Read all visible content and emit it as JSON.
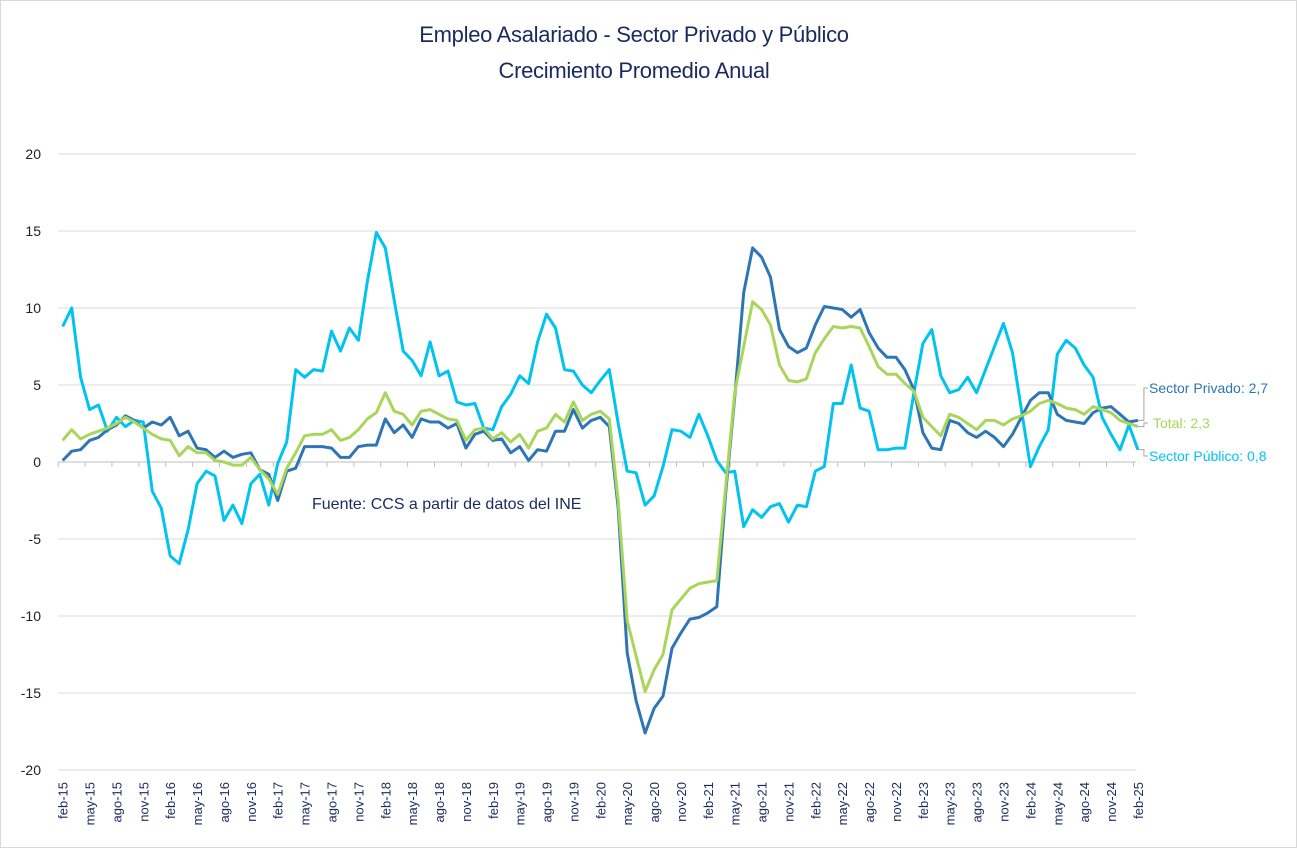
{
  "chart_data": {
    "type": "line",
    "title": "Empleo Asalariado - Sector Privado y Público",
    "subtitle": "Crecimiento Promedio Anual",
    "xlabel": "",
    "ylabel": "",
    "ylim": [
      -20,
      20
    ],
    "yticks": [
      20,
      15,
      10,
      5,
      0,
      -5,
      -10,
      -15,
      -20
    ],
    "grid": true,
    "start_month": "feb-15",
    "end_month": "feb-25",
    "xtick_labels": [
      "feb-15",
      "may-15",
      "ago-15",
      "nov-15",
      "feb-16",
      "may-16",
      "ago-16",
      "nov-16",
      "feb-17",
      "may-17",
      "ago-17",
      "nov-17",
      "feb-18",
      "may-18",
      "ago-18",
      "nov-18",
      "feb-19",
      "may-19",
      "ago-19",
      "nov-19",
      "feb-20",
      "may-20",
      "ago-20",
      "nov-20",
      "feb-21",
      "may-21",
      "ago-21",
      "nov-21",
      "feb-22",
      "may-22",
      "ago-22",
      "nov-22",
      "feb-23",
      "may-23",
      "ago-23",
      "nov-23",
      "feb-24",
      "may-24",
      "ago-24",
      "nov-24",
      "feb-25"
    ],
    "annotation": "Fuente: CCS a partir de datos del INE",
    "series": [
      {
        "name": "Sector Privado",
        "end_label": "Sector Privado: 2,7",
        "color": "#2e75b6",
        "values": [
          0.1,
          0.7,
          0.8,
          1.4,
          1.6,
          2.1,
          2.4,
          3.0,
          2.7,
          2.2,
          2.6,
          2.4,
          2.9,
          1.7,
          2.0,
          0.9,
          0.8,
          0.3,
          0.7,
          0.3,
          0.5,
          0.6,
          -0.5,
          -0.8,
          -2.5,
          -0.6,
          -0.4,
          1.0,
          1.0,
          1.0,
          0.9,
          0.3,
          0.3,
          1.0,
          1.1,
          1.1,
          2.8,
          1.9,
          2.4,
          1.6,
          2.8,
          2.6,
          2.6,
          2.2,
          2.5,
          0.9,
          1.8,
          2.0,
          1.4,
          1.5,
          0.6,
          1.0,
          0.1,
          0.8,
          0.7,
          2.0,
          2.0,
          3.4,
          2.2,
          2.7,
          2.9,
          2.3,
          -3.0,
          -12.4,
          -15.5,
          -17.6,
          -16.0,
          -15.2,
          -12.1,
          -11.1,
          -10.2,
          -10.1,
          -9.8,
          -9.4,
          -2.0,
          4.2,
          11.0,
          13.9,
          13.3,
          12.0,
          8.6,
          7.5,
          7.1,
          7.4,
          8.9,
          10.1,
          10.0,
          9.9,
          9.4,
          9.9,
          8.4,
          7.4,
          6.8,
          6.8,
          6.0,
          4.7,
          1.9,
          0.9,
          0.8,
          2.7,
          2.5,
          1.9,
          1.6,
          2.0,
          1.6,
          1.0,
          1.8,
          2.9,
          4.0,
          4.5,
          4.5,
          3.1,
          2.7,
          2.6,
          2.5,
          3.2,
          3.5,
          3.6,
          3.1,
          2.6,
          2.7
        ]
      },
      {
        "name": "Total",
        "end_label": "Total: 2,3",
        "color": "#a9d65a",
        "values": [
          1.4,
          2.1,
          1.5,
          1.8,
          2.0,
          2.2,
          2.5,
          2.9,
          2.6,
          2.2,
          1.8,
          1.5,
          1.4,
          0.4,
          1.0,
          0.6,
          0.6,
          0.1,
          0.0,
          -0.2,
          -0.2,
          0.3,
          -0.5,
          -1.1,
          -2.1,
          -0.4,
          0.6,
          1.7,
          1.8,
          1.8,
          2.1,
          1.4,
          1.6,
          2.1,
          2.8,
          3.2,
          4.5,
          3.3,
          3.1,
          2.4,
          3.3,
          3.4,
          3.1,
          2.8,
          2.7,
          1.4,
          2.1,
          2.2,
          1.5,
          1.9,
          1.3,
          1.8,
          0.9,
          2.0,
          2.2,
          3.1,
          2.6,
          3.9,
          2.7,
          3.1,
          3.3,
          2.8,
          -2.5,
          -10.3,
          -12.6,
          -14.9,
          -13.5,
          -12.5,
          -9.6,
          -8.9,
          -8.2,
          -7.9,
          -7.8,
          -7.7,
          -1.6,
          4.5,
          7.5,
          10.4,
          9.9,
          8.9,
          6.3,
          5.3,
          5.2,
          5.4,
          7.1,
          8.0,
          8.8,
          8.7,
          8.8,
          8.7,
          7.5,
          6.2,
          5.7,
          5.7,
          5.1,
          4.6,
          2.9,
          2.3,
          1.7,
          3.1,
          2.9,
          2.5,
          2.1,
          2.7,
          2.7,
          2.4,
          2.8,
          3.0,
          3.3,
          3.8,
          4.0,
          3.8,
          3.5,
          3.4,
          3.1,
          3.6,
          3.4,
          3.2,
          2.7,
          2.5,
          2.3
        ]
      },
      {
        "name": "Sector Público",
        "end_label": "Sector Público: 0,8",
        "color": "#00c3f0",
        "values": [
          8.8,
          10.0,
          5.5,
          3.4,
          3.7,
          2.0,
          2.9,
          2.3,
          2.7,
          2.6,
          -1.9,
          -3.0,
          -6.1,
          -6.6,
          -4.4,
          -1.4,
          -0.6,
          -0.9,
          -3.8,
          -2.8,
          -4.0,
          -1.4,
          -0.8,
          -2.8,
          -0.1,
          1.3,
          6.0,
          5.5,
          6.0,
          5.9,
          8.5,
          7.2,
          8.7,
          7.9,
          11.7,
          14.9,
          13.9,
          10.5,
          7.2,
          6.6,
          5.6,
          7.8,
          5.6,
          5.9,
          3.9,
          3.7,
          3.8,
          2.2,
          2.1,
          3.6,
          4.4,
          5.6,
          5.1,
          7.8,
          9.6,
          8.7,
          6.0,
          5.9,
          5.0,
          4.5,
          5.3,
          6.0,
          2.5,
          -0.6,
          -0.7,
          -2.8,
          -2.2,
          -0.3,
          2.1,
          2.0,
          1.6,
          3.1,
          1.7,
          0.1,
          -0.7,
          -0.6,
          -4.2,
          -3.1,
          -3.6,
          -2.9,
          -2.7,
          -3.9,
          -2.8,
          -2.9,
          -0.6,
          -0.3,
          3.8,
          3.8,
          6.3,
          3.5,
          3.3,
          0.8,
          0.8,
          0.9,
          0.9,
          4.5,
          7.7,
          8.6,
          5.6,
          4.5,
          4.7,
          5.5,
          4.5,
          6.0,
          7.5,
          9.0,
          7.1,
          3.4,
          -0.3,
          1.0,
          2.1,
          7.0,
          7.9,
          7.4,
          6.3,
          5.5,
          2.9,
          1.8,
          0.8,
          2.4,
          0.8
        ]
      }
    ]
  }
}
